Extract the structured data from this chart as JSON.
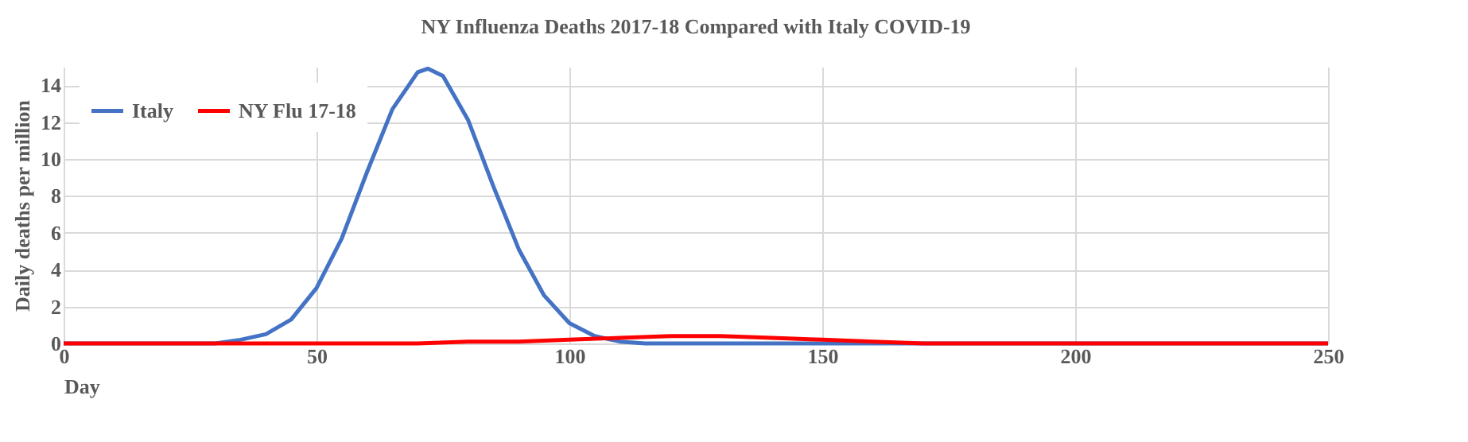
{
  "chart_data": {
    "type": "line",
    "title": "NY  Influenza  Deaths  2017-18 Compared  with  Italy  COVID-19",
    "xlabel": "Day",
    "ylabel": "Daily  deaths  per  million",
    "xlim": [
      0,
      250
    ],
    "xticks": [
      0,
      50,
      100,
      150,
      200,
      250
    ],
    "ylim": [
      0,
      15
    ],
    "yticks": [
      0,
      2,
      4,
      6,
      8,
      10,
      12,
      14
    ],
    "grid": true,
    "legend": "top left",
    "marker": "none",
    "line_style": "solid",
    "series": [
      {
        "name": "Italy",
        "color": "#4472c4",
        "x": [
          0,
          25,
          30,
          35,
          40,
          45,
          50,
          55,
          60,
          65,
          70,
          72,
          75,
          80,
          85,
          90,
          95,
          100,
          105,
          110,
          115,
          120,
          130,
          250
        ],
        "values": [
          0,
          0,
          0.0,
          0.2,
          0.5,
          1.3,
          3.0,
          5.7,
          9.3,
          12.7,
          14.7,
          14.9,
          14.5,
          12.1,
          8.5,
          5.1,
          2.6,
          1.1,
          0.4,
          0.1,
          0.0,
          0,
          0,
          0
        ]
      },
      {
        "name": "NY Flu 17-18",
        "color": "#ff0000",
        "x": [
          0,
          60,
          70,
          80,
          90,
          100,
          110,
          120,
          130,
          140,
          150,
          160,
          170,
          180,
          250
        ],
        "values": [
          0,
          0,
          0.0,
          0.1,
          0.1,
          0.2,
          0.3,
          0.4,
          0.4,
          0.3,
          0.2,
          0.1,
          0.0,
          0,
          0
        ]
      }
    ]
  }
}
